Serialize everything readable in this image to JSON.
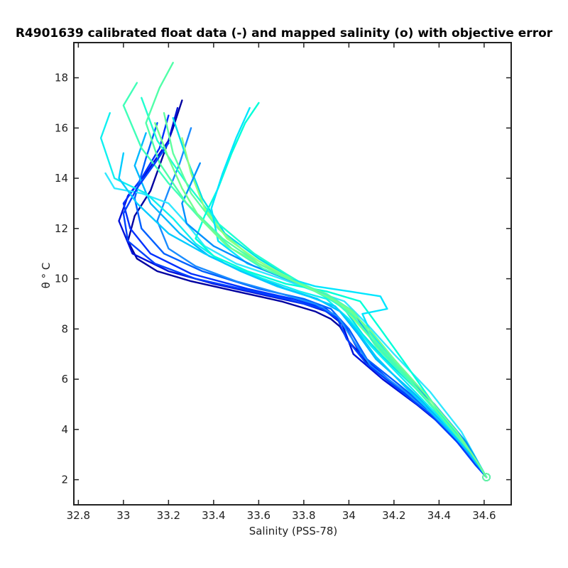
{
  "chart_data": {
    "type": "line",
    "title": "R4901639 calibrated float data (-) and mapped salinity (o) with objective error",
    "xlabel": "Salinity (PSS-78)",
    "ylabel": "θ ° C",
    "xlim": [
      32.78,
      34.72
    ],
    "ylim": [
      1.0,
      19.4
    ],
    "x_ticks": [
      "32.8",
      "33",
      "33.2",
      "33.4",
      "33.6",
      "33.8",
      "34",
      "34.2",
      "34.4",
      "34.6"
    ],
    "y_ticks": [
      "2",
      "4",
      "6",
      "8",
      "10",
      "12",
      "14",
      "16",
      "18"
    ],
    "grid": false,
    "legend": "none",
    "colormap": [
      "#00008f",
      "#0020ff",
      "#0080ff",
      "#00d0ff",
      "#40ffc0",
      "#80ff80"
    ],
    "series": [
      {
        "color": "#0000a0",
        "x": [
          33.26,
          33.22,
          33.18,
          33.12,
          33.05,
          33.02,
          33.06,
          33.15,
          33.3,
          33.5,
          33.7,
          33.85,
          33.92,
          33.96,
          34.0,
          34.1,
          34.25,
          34.4,
          34.52,
          34.61
        ],
        "y": [
          17.1,
          16.0,
          15.0,
          13.5,
          12.5,
          11.5,
          10.8,
          10.3,
          9.9,
          9.5,
          9.1,
          8.7,
          8.4,
          8.1,
          7.5,
          6.5,
          5.4,
          4.3,
          3.2,
          2.1
        ]
      },
      {
        "color": "#0010d8",
        "x": [
          33.24,
          33.2,
          33.1,
          33.02,
          32.98,
          33.04,
          33.2,
          33.4,
          33.6,
          33.8,
          33.9,
          33.97,
          34.02,
          34.15,
          34.3,
          34.45,
          34.55,
          34.61
        ],
        "y": [
          16.8,
          15.5,
          14.2,
          13.3,
          12.3,
          11.0,
          10.3,
          9.8,
          9.4,
          9.0,
          8.7,
          8.2,
          7.0,
          6.0,
          5.0,
          3.9,
          2.8,
          2.1
        ]
      },
      {
        "color": "#0030ff",
        "x": [
          33.2,
          33.16,
          33.08,
          33.0,
          33.03,
          33.12,
          33.3,
          33.55,
          33.75,
          33.9,
          33.98,
          34.05,
          34.2,
          34.35,
          34.48,
          34.56,
          34.61
        ],
        "y": [
          16.5,
          15.2,
          14.0,
          13.0,
          12.0,
          11.0,
          10.2,
          9.6,
          9.2,
          8.8,
          8.2,
          7.0,
          5.8,
          4.8,
          3.7,
          2.7,
          2.1
        ]
      },
      {
        "color": "#0060ff",
        "x": [
          33.15,
          33.1,
          33.05,
          33.08,
          33.18,
          33.35,
          33.6,
          33.8,
          33.92,
          34.0,
          34.08,
          34.22,
          34.38,
          34.5,
          34.57,
          34.61
        ],
        "y": [
          16.2,
          14.8,
          13.2,
          12.0,
          11.0,
          10.3,
          9.6,
          9.2,
          8.8,
          8.0,
          6.8,
          5.8,
          4.6,
          3.5,
          2.6,
          2.1
        ]
      },
      {
        "color": "#1a8cff",
        "x": [
          33.3,
          33.25,
          33.2,
          33.15,
          33.2,
          33.32,
          33.5,
          33.7,
          33.85,
          33.95,
          34.03,
          34.1,
          34.25,
          34.4,
          34.52,
          34.61
        ],
        "y": [
          16.0,
          14.6,
          13.5,
          12.3,
          11.2,
          10.5,
          9.9,
          9.4,
          9.0,
          8.5,
          7.4,
          6.5,
          5.5,
          4.3,
          3.1,
          2.1
        ]
      },
      {
        "color": "#00b8ff",
        "x": [
          33.1,
          33.05,
          33.12,
          33.25,
          33.38,
          33.55,
          33.72,
          33.86,
          33.96,
          34.04,
          34.12,
          34.27,
          34.42,
          34.53,
          34.61
        ],
        "y": [
          15.8,
          14.5,
          13.0,
          11.8,
          10.9,
          10.2,
          9.6,
          9.2,
          8.7,
          7.8,
          6.8,
          5.6,
          4.3,
          3.1,
          2.1
        ]
      },
      {
        "color": "#00e0e8",
        "x": [
          33.22,
          33.28,
          33.35,
          33.45,
          33.6,
          33.75,
          33.88,
          33.98,
          34.06,
          34.15,
          34.3,
          34.45,
          34.55,
          34.61
        ],
        "y": [
          16.4,
          14.8,
          13.2,
          11.8,
          10.8,
          10.0,
          9.4,
          8.8,
          7.8,
          6.9,
          5.6,
          4.1,
          3.0,
          2.1
        ]
      },
      {
        "color": "#20ffd0",
        "x": [
          33.08,
          33.15,
          33.28,
          33.42,
          33.58,
          33.72,
          33.85,
          33.95,
          34.05,
          34.14,
          34.28,
          34.42,
          34.54,
          34.61
        ],
        "y": [
          17.2,
          15.5,
          13.8,
          12.2,
          11.0,
          10.2,
          9.5,
          9.0,
          8.2,
          7.1,
          5.8,
          4.4,
          3.1,
          2.1
        ]
      },
      {
        "color": "#60ffa0",
        "x": [
          33.18,
          33.22,
          33.3,
          33.42,
          33.56,
          33.7,
          33.84,
          33.95,
          34.04,
          34.12,
          34.26,
          34.4,
          34.52,
          34.61
        ],
        "y": [
          16.6,
          15.0,
          13.4,
          12.0,
          10.9,
          10.2,
          9.6,
          9.1,
          8.4,
          7.3,
          6.0,
          4.6,
          3.3,
          2.1
        ]
      },
      {
        "color": "#90ff80",
        "x": [
          33.26,
          33.3,
          33.36,
          33.46,
          33.6,
          33.74,
          33.86,
          33.96,
          34.06,
          34.16,
          34.3,
          34.44,
          34.54,
          34.61
        ],
        "y": [
          15.6,
          14.2,
          12.8,
          11.6,
          10.7,
          10.0,
          9.5,
          9.0,
          8.0,
          7.0,
          5.7,
          4.2,
          3.0,
          2.1
        ]
      },
      {
        "color": "#30e8ff",
        "x": [
          32.92,
          32.96,
          33.08,
          33.2,
          33.28,
          33.36,
          33.5,
          33.7,
          33.85,
          33.98,
          34.08,
          34.2,
          34.36,
          34.5,
          34.61
        ],
        "y": [
          14.2,
          13.6,
          13.4,
          13.0,
          12.2,
          11.3,
          10.6,
          10.0,
          9.5,
          9.1,
          8.2,
          7.0,
          5.5,
          3.9,
          2.1
        ]
      },
      {
        "color": "#10f0f0",
        "x": [
          32.94,
          32.9,
          32.96,
          33.1,
          33.22,
          33.32,
          33.45,
          33.62,
          33.78,
          33.9,
          34.0,
          34.1,
          34.24,
          34.4,
          34.54,
          34.61
        ],
        "y": [
          16.6,
          15.6,
          14.0,
          13.4,
          12.4,
          11.4,
          10.6,
          10.0,
          9.5,
          9.2,
          8.4,
          7.3,
          6.0,
          4.5,
          3.1,
          2.1
        ]
      },
      {
        "color": "#00ffd8",
        "x": [
          33.6,
          33.54,
          33.48,
          33.42,
          33.36,
          33.32,
          33.4,
          33.55,
          33.72,
          33.9,
          34.05,
          34.14,
          34.26,
          34.4,
          34.54,
          34.61
        ],
        "y": [
          17.0,
          16.2,
          15.0,
          13.6,
          12.5,
          11.6,
          10.9,
          10.3,
          9.8,
          9.5,
          9.1,
          8.0,
          6.5,
          4.7,
          3.2,
          2.1
        ]
      },
      {
        "color": "#00e6ff",
        "x": [
          33.56,
          33.5,
          33.44,
          33.39,
          33.42,
          33.55,
          33.7,
          33.85,
          34.0,
          34.14,
          34.17,
          34.06,
          34.1,
          34.22,
          34.36,
          34.5,
          34.61
        ],
        "y": [
          16.8,
          15.6,
          14.2,
          12.8,
          11.5,
          10.6,
          10.1,
          9.7,
          9.5,
          9.3,
          8.8,
          8.6,
          7.8,
          6.6,
          5.0,
          3.5,
          2.1
        ]
      },
      {
        "color": "#0090ff",
        "x": [
          33.34,
          33.3,
          33.26,
          33.28,
          33.4,
          33.58,
          33.75,
          33.9,
          34.02,
          34.1,
          34.22,
          34.38,
          34.52,
          34.61
        ],
        "y": [
          14.6,
          13.8,
          13.0,
          12.2,
          11.3,
          10.5,
          9.9,
          9.4,
          8.7,
          7.6,
          6.4,
          5.0,
          3.5,
          2.1
        ]
      },
      {
        "color": "#40ffb8",
        "x": [
          33.06,
          33.0,
          33.08,
          33.2,
          33.34,
          33.48,
          33.62,
          33.78,
          33.92,
          34.02,
          34.12,
          34.25,
          34.4,
          34.53,
          34.61
        ],
        "y": [
          17.8,
          16.9,
          15.2,
          13.8,
          12.4,
          11.2,
          10.4,
          9.8,
          9.2,
          8.5,
          7.4,
          6.1,
          4.6,
          3.2,
          2.1
        ]
      },
      {
        "color": "#50ffa8",
        "x": [
          33.22,
          33.16,
          33.1,
          33.16,
          33.28,
          33.44,
          33.6,
          33.76,
          33.9,
          34.02,
          34.12,
          34.26,
          34.41,
          34.54,
          34.61
        ],
        "y": [
          18.6,
          17.6,
          16.2,
          14.6,
          13.0,
          11.6,
          10.6,
          9.9,
          9.4,
          8.7,
          7.5,
          6.1,
          4.5,
          3.1,
          2.1
        ]
      },
      {
        "color": "#0040ff",
        "x": [
          33.2,
          33.14,
          33.06,
          33.0,
          33.02,
          33.14,
          33.32,
          33.52,
          33.72,
          33.88,
          33.95,
          33.99,
          34.08,
          34.22,
          34.36,
          34.48,
          34.56,
          34.61
        ],
        "y": [
          15.4,
          14.6,
          13.6,
          12.6,
          11.5,
          10.6,
          10.0,
          9.6,
          9.2,
          8.8,
          8.4,
          7.6,
          6.6,
          5.6,
          4.6,
          3.5,
          2.6,
          2.1
        ]
      },
      {
        "color": "#00ccff",
        "x": [
          33.0,
          32.98,
          33.06,
          33.2,
          33.36,
          33.52,
          33.68,
          33.82,
          33.94,
          34.03,
          34.12,
          34.26,
          34.42,
          34.54,
          34.61
        ],
        "y": [
          15.0,
          14.0,
          13.0,
          11.8,
          11.0,
          10.3,
          9.7,
          9.3,
          8.9,
          8.0,
          6.9,
          5.6,
          4.2,
          3.0,
          2.1
        ]
      },
      {
        "color": "#70ff90",
        "x": [
          33.14,
          33.2,
          33.26,
          33.34,
          33.46,
          33.62,
          33.78,
          33.9,
          34.0,
          34.1,
          34.2,
          34.34,
          34.48,
          34.57,
          34.61
        ],
        "y": [
          16.2,
          14.8,
          13.6,
          12.4,
          11.3,
          10.5,
          9.8,
          9.3,
          8.8,
          7.9,
          6.8,
          5.4,
          3.9,
          2.7,
          2.1
        ]
      }
    ]
  }
}
